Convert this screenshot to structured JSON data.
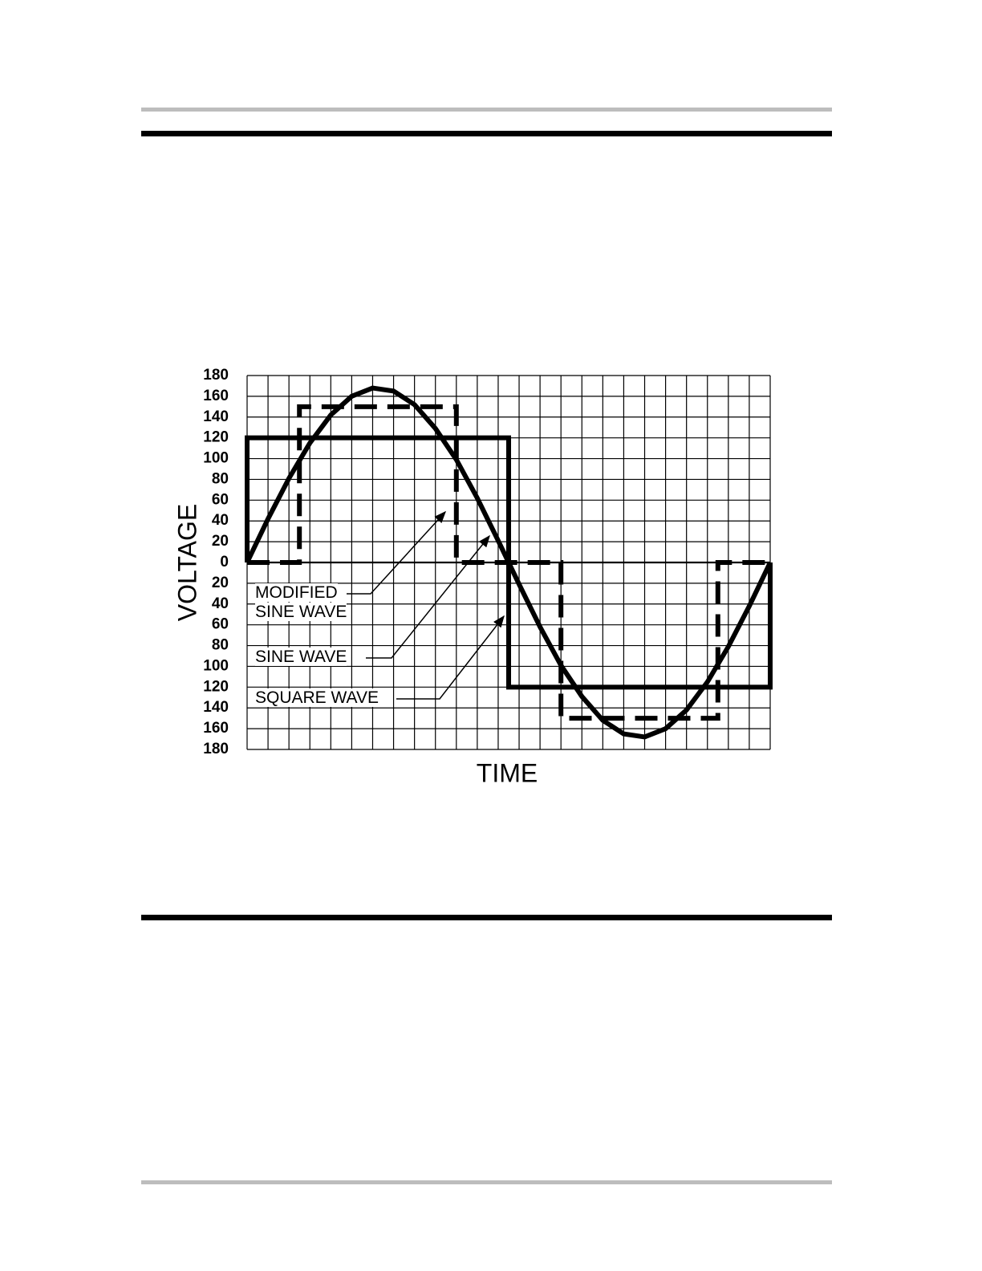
{
  "chart_data": {
    "type": "line",
    "y_label": "VOLTAGE",
    "x_label": "TIME",
    "xlim": [
      0,
      25
    ],
    "xticks": [
      0,
      1,
      2,
      3,
      4,
      5,
      6,
      7,
      8,
      9,
      10,
      11,
      12,
      13,
      14,
      15,
      16,
      17,
      18,
      19,
      20,
      21,
      22,
      23,
      24,
      25
    ],
    "ylim": [
      -180,
      180
    ],
    "yticks": [
      {
        "value": -180,
        "label": "180"
      },
      {
        "value": -160,
        "label": "160"
      },
      {
        "value": -140,
        "label": "140"
      },
      {
        "value": -120,
        "label": "120"
      },
      {
        "value": -100,
        "label": "100"
      },
      {
        "value": -80,
        "label": "80"
      },
      {
        "value": -60,
        "label": "60"
      },
      {
        "value": -40,
        "label": "40"
      },
      {
        "value": -20,
        "label": "20"
      },
      0,
      20,
      40,
      60,
      80,
      100,
      120,
      140,
      160,
      180
    ],
    "grid": true,
    "series": [
      {
        "name": "MODIFIED SINE WAVE",
        "color": "#000000",
        "dashed": true,
        "x": [
          0,
          2.5,
          2.5,
          10,
          10,
          15,
          15,
          22.5,
          22.5,
          25
        ],
        "values": [
          0,
          0,
          150,
          150,
          0,
          0,
          -150,
          -150,
          0,
          0
        ]
      },
      {
        "name": "SINE WAVE",
        "color": "#000000",
        "dashed": false,
        "x": [
          0,
          1,
          2,
          3,
          4,
          5,
          6,
          7,
          8,
          9,
          10,
          11,
          12,
          13,
          14,
          15,
          16,
          17,
          18,
          19,
          20,
          21,
          22,
          23,
          24,
          25
        ],
        "values": [
          0,
          42,
          81,
          115,
          142,
          160,
          168,
          165,
          152,
          129,
          99,
          62,
          21,
          -21,
          -62,
          -99,
          -129,
          -152,
          -165,
          -168,
          -160,
          -142,
          -115,
          -81,
          -42,
          0
        ]
      },
      {
        "name": "SQUARE WAVE",
        "color": "#000000",
        "dashed": false,
        "x": [
          0,
          0,
          12.5,
          12.5,
          25,
          25
        ],
        "values": [
          0,
          120,
          120,
          -120,
          -120,
          0
        ]
      }
    ]
  }
}
